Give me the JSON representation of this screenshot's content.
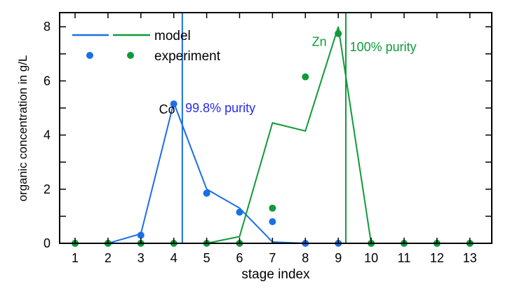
{
  "chart_data": {
    "type": "line",
    "xlabel": "stage index",
    "ylabel": "organic concentration in g/L",
    "xlim": [
      0.5,
      13.3
    ],
    "ylim": [
      0,
      8.5
    ],
    "x": [
      1,
      2,
      3,
      4,
      5,
      6,
      7,
      8,
      9,
      10,
      11,
      12,
      13
    ],
    "xticks": [
      "1",
      "2",
      "3",
      "4",
      "5",
      "6",
      "7",
      "8",
      "9",
      "10",
      "11",
      "12",
      "13"
    ],
    "yticks": [
      0,
      2,
      4,
      6,
      8
    ],
    "ytick_labels": [
      "0",
      "2",
      "4",
      "6",
      "8"
    ],
    "grid": false,
    "legend": {
      "position": "top-left",
      "model_label": "model",
      "experiment_label": "experiment"
    },
    "colors": {
      "co": "#1a6fe6",
      "zn": "#109a3a",
      "co_annotation": "#2a2af0",
      "axis": "#000000"
    },
    "series": [
      {
        "name": "Co model",
        "kind": "line",
        "color": "#1a6fe6",
        "values": [
          0,
          0,
          0.35,
          5.2,
          2.0,
          1.3,
          0.05,
          0,
          0,
          0,
          0,
          0,
          0
        ]
      },
      {
        "name": "Zn model",
        "kind": "line",
        "color": "#109a3a",
        "values": [
          0,
          0,
          0,
          0,
          0,
          0.25,
          4.45,
          4.15,
          8.0,
          0,
          0,
          0,
          0
        ]
      },
      {
        "name": "Co experiment",
        "kind": "scatter",
        "color": "#1a6fe6",
        "values": [
          0,
          0,
          0.3,
          5.15,
          1.85,
          1.15,
          0.8,
          0,
          0,
          0,
          0,
          0,
          0
        ]
      },
      {
        "name": "Zn experiment",
        "kind": "scatter",
        "color": "#109a3a",
        "values": [
          0,
          0,
          0,
          0,
          0,
          0,
          1.3,
          6.15,
          7.75,
          0,
          0,
          0,
          0
        ]
      }
    ],
    "vlines": [
      {
        "x": 4.26,
        "color": "#1a6fe6"
      },
      {
        "x": 9.23,
        "color": "#109a3a"
      }
    ],
    "annotations": [
      {
        "text": "Co",
        "x": 3.55,
        "y": 4.95,
        "color": "#000000"
      },
      {
        "text": "99.8% purity",
        "x": 4.35,
        "y": 5.0,
        "color": "#2a2af0"
      },
      {
        "text": "Zn",
        "x": 8.2,
        "y": 7.45,
        "color": "#109a3a"
      },
      {
        "text": "100% purity",
        "x": 9.35,
        "y": 7.25,
        "color": "#109a3a"
      }
    ]
  }
}
